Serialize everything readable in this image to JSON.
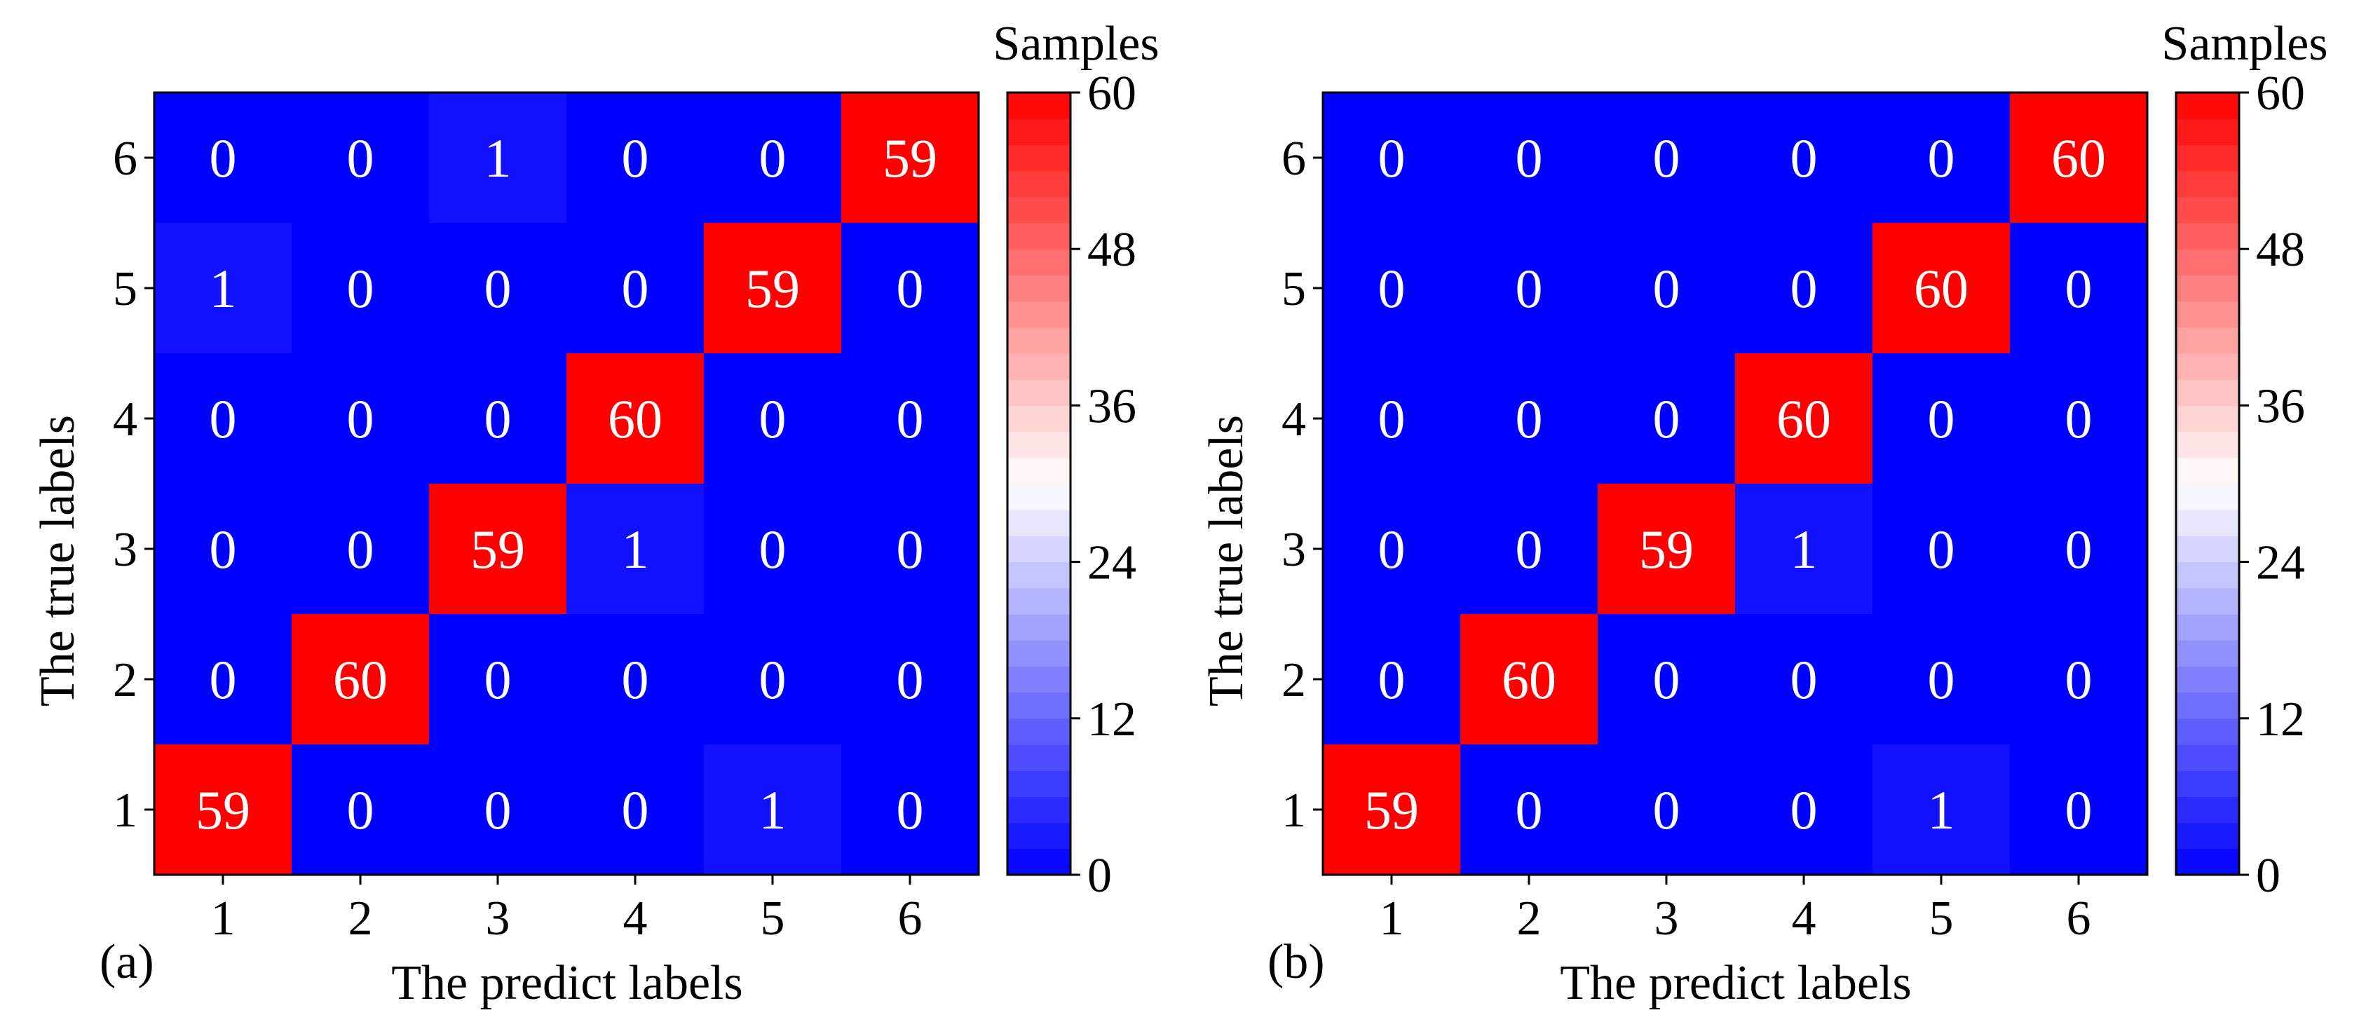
{
  "colors": {
    "low": "#0000ff",
    "mid": "#ffffff",
    "high": "#ff0000",
    "cell_text": "#ffffff",
    "axis": "#000000"
  },
  "chart_data": [
    {
      "type": "heatmap",
      "panel_label": "(a)",
      "xlabel": "The predict labels",
      "ylabel": "The true labels",
      "x_categories": [
        "1",
        "2",
        "3",
        "4",
        "5",
        "6"
      ],
      "y_categories": [
        "1",
        "2",
        "3",
        "4",
        "5",
        "6"
      ],
      "matrix_top_to_bottom": [
        [
          0,
          0,
          1,
          0,
          0,
          59
        ],
        [
          1,
          0,
          0,
          0,
          59,
          0
        ],
        [
          0,
          0,
          0,
          60,
          0,
          0
        ],
        [
          0,
          0,
          59,
          1,
          0,
          0
        ],
        [
          0,
          60,
          0,
          0,
          0,
          0
        ],
        [
          59,
          0,
          0,
          0,
          1,
          0
        ]
      ],
      "colorbar": {
        "title": "Samples",
        "range": [
          0,
          60
        ],
        "ticks": [
          "0",
          "12",
          "24",
          "36",
          "48",
          "60"
        ]
      }
    },
    {
      "type": "heatmap",
      "panel_label": "(b)",
      "xlabel": "The predict labels",
      "ylabel": "The true labels",
      "x_categories": [
        "1",
        "2",
        "3",
        "4",
        "5",
        "6"
      ],
      "y_categories": [
        "1",
        "2",
        "3",
        "4",
        "5",
        "6"
      ],
      "matrix_top_to_bottom": [
        [
          0,
          0,
          0,
          0,
          0,
          60
        ],
        [
          0,
          0,
          0,
          0,
          60,
          0
        ],
        [
          0,
          0,
          0,
          60,
          0,
          0
        ],
        [
          0,
          0,
          59,
          1,
          0,
          0
        ],
        [
          0,
          60,
          0,
          0,
          0,
          0
        ],
        [
          59,
          0,
          0,
          0,
          1,
          0
        ]
      ],
      "colorbar": {
        "title": "Samples",
        "range": [
          0,
          60
        ],
        "ticks": [
          "0",
          "12",
          "24",
          "36",
          "48",
          "60"
        ]
      }
    }
  ]
}
